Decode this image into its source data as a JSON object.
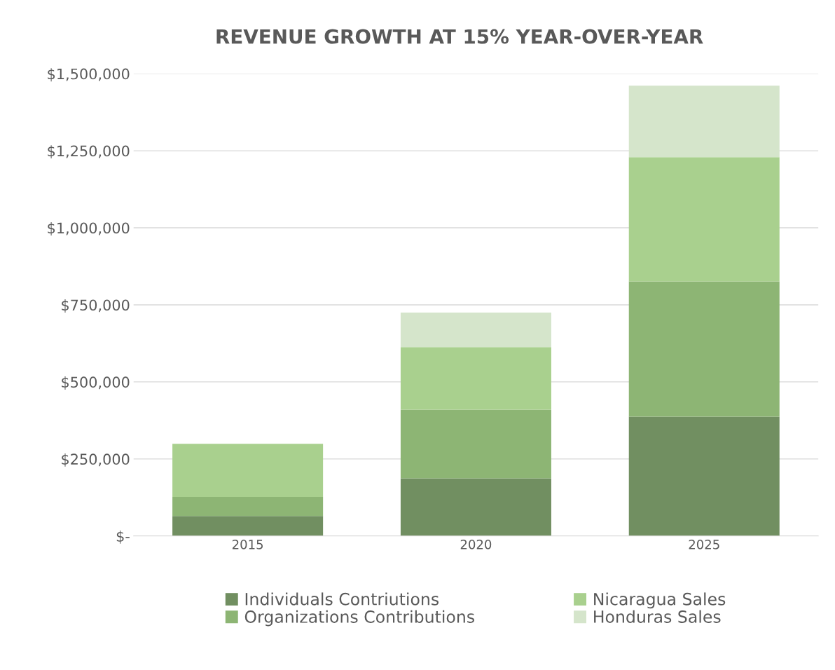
{
  "chart_data": {
    "type": "bar",
    "title": "REVENUE GROWTH AT 15% YEAR-OVER-YEAR",
    "categories": [
      "2015",
      "2020",
      "2025"
    ],
    "stacked": true,
    "series": [
      {
        "name": "Individuals Contriutions",
        "color": "#718f61",
        "values": [
          65000,
          187000,
          387000
        ]
      },
      {
        "name": "Organizations Contributions",
        "color": "#8db574",
        "values": [
          62000,
          223000,
          439000
        ]
      },
      {
        "name": "Nicaragua Sales",
        "color": "#a9d08e",
        "values": [
          172000,
          203000,
          403000
        ]
      },
      {
        "name": "Honduras Sales",
        "color": "#d5e5cb",
        "values": [
          0,
          112000,
          232000
        ]
      }
    ],
    "ylim": [
      0,
      1500000
    ],
    "yticks": [
      {
        "value": 0,
        "label": "$-"
      },
      {
        "value": 250000,
        "label": "$250,000"
      },
      {
        "value": 500000,
        "label": "$500,000"
      },
      {
        "value": 750000,
        "label": "$750,000"
      },
      {
        "value": 1000000,
        "label": "$1,000,000"
      },
      {
        "value": 1250000,
        "label": "$1,250,000"
      },
      {
        "value": 1500000,
        "label": "$1,500,000"
      }
    ],
    "grid": "y",
    "legend": "bottom"
  }
}
